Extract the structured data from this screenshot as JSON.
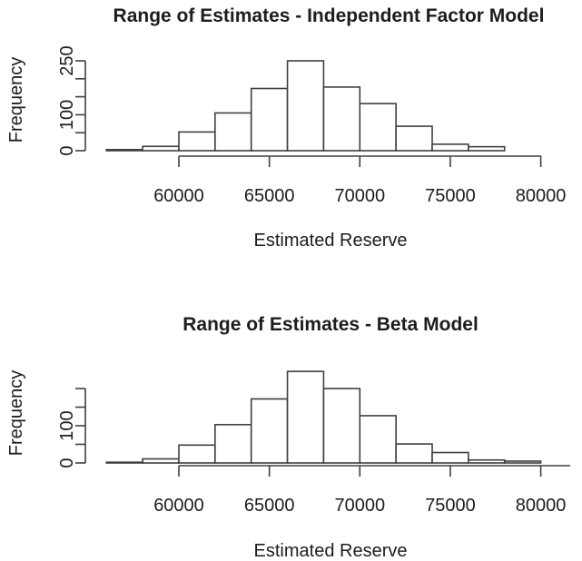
{
  "page": {
    "background": "#ffffff"
  },
  "chart_data": [
    {
      "type": "bar",
      "chart_kind": "histogram",
      "title": "Range of Estimates - Independent Factor Model",
      "xlabel": "Estimated Reserve",
      "ylabel": "Frequency",
      "bin_start": 56000,
      "bin_width": 2000,
      "counts": [
        3,
        12,
        52,
        105,
        173,
        250,
        177,
        131,
        68,
        18,
        11
      ],
      "x_ticks": [
        60000,
        65000,
        70000,
        75000,
        80000
      ],
      "x_tick_labels": [
        "60000",
        "65000",
        "70000",
        "75000",
        "80000"
      ],
      "y_ticks": [
        0,
        50,
        100,
        150,
        200,
        250
      ],
      "y_tick_labels": [
        "0",
        "",
        "100",
        "",
        "",
        "250"
      ],
      "xlim": [
        56000,
        80000
      ],
      "ylim": [
        0,
        250
      ],
      "grid": false,
      "legend": "none",
      "bar_fill": "#ffffff",
      "line_color": "#3f3f3f",
      "text_color": "#1d1d1d"
    },
    {
      "type": "bar",
      "chart_kind": "histogram",
      "title": "Range of Estimates - Beta Model",
      "xlabel": "Estimated Reserve",
      "ylabel": "Frequency",
      "bin_start": 56000,
      "bin_width": 2000,
      "counts": [
        2,
        11,
        48,
        103,
        172,
        246,
        200,
        127,
        51,
        28,
        8,
        5
      ],
      "x_ticks": [
        60000,
        65000,
        70000,
        75000,
        80000
      ],
      "x_tick_labels": [
        "60000",
        "65000",
        "70000",
        "75000",
        "80000"
      ],
      "y_ticks": [
        0,
        50,
        100,
        150,
        200
      ],
      "y_tick_labels": [
        "0",
        "",
        "100",
        "",
        ""
      ],
      "xlim": [
        56000,
        82000
      ],
      "ylim": [
        0,
        200
      ],
      "grid": false,
      "legend": "none",
      "bar_fill": "#ffffff",
      "line_color": "#3f3f3f",
      "text_color": "#1d1d1d"
    }
  ]
}
